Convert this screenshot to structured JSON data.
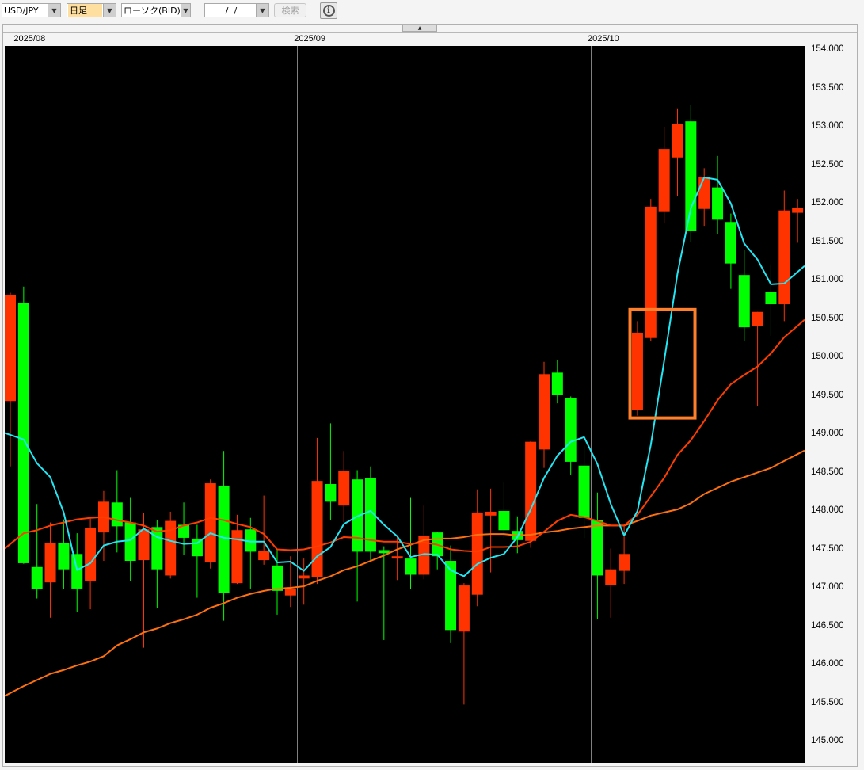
{
  "toolbar": {
    "symbol": "USD/JPY",
    "timeframe": "日足",
    "chart_kind": "ローソク(BID)",
    "date_value": "/  /",
    "search_label": "検索",
    "info_icon": "info-circle-icon",
    "timeframe_highlight": "#ffdf9f"
  },
  "colors": {
    "background": "#000000",
    "up_candle": "#ff3300",
    "down_candle": "#00ff00",
    "ma_short": "#22e6f2",
    "ma_mid": "#ff3d00",
    "ma_long": "#ff7010",
    "highlight_box": "#ff7f2a",
    "gridline": "#808080"
  },
  "chart_data": {
    "type": "candlestick",
    "title": "",
    "xlabel": "",
    "ylabel": "",
    "ylim": [
      145.0,
      154.0
    ],
    "y_ticks": [
      "154.000",
      "153.500",
      "153.000",
      "152.500",
      "152.000",
      "151.500",
      "151.000",
      "150.500",
      "150.000",
      "149.500",
      "149.000",
      "148.500",
      "148.000",
      "147.500",
      "147.000",
      "146.500",
      "146.000",
      "145.500",
      "145.000"
    ],
    "y_axis_position": "right",
    "x_labels": [
      {
        "label": "2025/08",
        "before_candle": 1
      },
      {
        "label": "2025/09",
        "before_candle": 22
      },
      {
        "label": "2025/10",
        "before_candle": 44
      }
    ],
    "extra_gridline_at_candle": 57,
    "candles": [
      [
        149.42,
        150.83,
        148.57,
        150.8
      ],
      [
        150.7,
        150.91,
        147.3,
        147.31
      ],
      [
        147.26,
        148.08,
        146.85,
        146.97
      ],
      [
        147.06,
        147.84,
        146.6,
        147.57
      ],
      [
        147.57,
        147.88,
        146.97,
        147.23
      ],
      [
        147.43,
        147.7,
        146.67,
        146.98
      ],
      [
        147.08,
        147.89,
        146.71,
        147.77
      ],
      [
        147.71,
        148.25,
        147.34,
        148.11
      ],
      [
        148.1,
        148.52,
        147.45,
        147.79
      ],
      [
        147.84,
        148.16,
        147.08,
        147.34
      ],
      [
        147.35,
        147.96,
        146.21,
        147.75
      ],
      [
        147.78,
        147.87,
        146.73,
        147.23
      ],
      [
        147.15,
        147.98,
        147.11,
        147.86
      ],
      [
        147.81,
        148.1,
        147.42,
        147.64
      ],
      [
        147.63,
        147.81,
        146.86,
        147.4
      ],
      [
        147.32,
        148.4,
        147.24,
        148.35
      ],
      [
        148.32,
        148.77,
        146.56,
        146.92
      ],
      [
        147.05,
        147.94,
        147.04,
        147.74
      ],
      [
        147.75,
        147.9,
        146.98,
        147.46
      ],
      [
        147.35,
        148.19,
        147.29,
        147.47
      ],
      [
        147.28,
        147.49,
        146.64,
        146.95
      ],
      [
        146.89,
        147.4,
        146.74,
        146.98
      ],
      [
        147.11,
        147.37,
        146.77,
        147.15
      ],
      [
        147.13,
        148.94,
        147.04,
        148.38
      ],
      [
        148.34,
        149.13,
        147.87,
        148.11
      ],
      [
        148.06,
        148.77,
        147.84,
        148.51
      ],
      [
        148.4,
        148.52,
        146.81,
        147.46
      ],
      [
        148.42,
        148.57,
        147.32,
        147.46
      ],
      [
        147.48,
        147.53,
        146.31,
        147.44
      ],
      [
        147.37,
        147.65,
        147.09,
        147.4
      ],
      [
        147.37,
        148.16,
        146.98,
        147.16
      ],
      [
        147.16,
        148.06,
        147.1,
        147.67
      ],
      [
        147.71,
        147.72,
        147.23,
        147.4
      ],
      [
        147.34,
        147.54,
        146.27,
        146.44
      ],
      [
        146.42,
        147.05,
        145.47,
        147.02
      ],
      [
        146.9,
        148.27,
        146.75,
        147.97
      ],
      [
        147.93,
        148.28,
        147.19,
        147.98
      ],
      [
        147.99,
        148.37,
        147.64,
        147.74
      ],
      [
        147.73,
        147.92,
        147.44,
        147.61
      ],
      [
        147.6,
        148.9,
        147.51,
        148.89
      ],
      [
        148.79,
        149.93,
        148.55,
        149.77
      ],
      [
        149.79,
        149.95,
        149.39,
        149.5
      ],
      [
        149.46,
        149.48,
        148.46,
        148.63
      ],
      [
        148.58,
        148.84,
        147.64,
        147.9
      ],
      [
        147.87,
        148.23,
        146.58,
        147.15
      ],
      [
        147.03,
        147.5,
        146.6,
        147.23
      ],
      [
        147.21,
        147.79,
        147.04,
        147.43
      ],
      [
        149.3,
        150.46,
        149.23,
        150.31
      ],
      [
        150.24,
        152.05,
        150.2,
        151.95
      ],
      [
        151.89,
        152.99,
        151.73,
        152.7
      ],
      [
        152.59,
        153.23,
        152.09,
        153.03
      ],
      [
        153.06,
        153.27,
        151.49,
        151.63
      ],
      [
        151.92,
        152.45,
        151.7,
        152.33
      ],
      [
        152.2,
        152.61,
        151.59,
        151.78
      ],
      [
        151.75,
        151.86,
        150.88,
        151.21
      ],
      [
        151.06,
        151.39,
        150.2,
        150.38
      ],
      [
        150.4,
        150.58,
        149.36,
        150.58
      ],
      [
        150.84,
        151.2,
        150.27,
        150.68
      ],
      [
        150.68,
        152.16,
        150.46,
        151.9
      ],
      [
        151.87,
        152.05,
        151.48,
        151.93
      ]
    ],
    "candle_fields": [
      "open",
      "high",
      "low",
      "close"
    ],
    "series": [
      {
        "key": "ma_short",
        "values": [
          148.98,
          148.92,
          148.61,
          148.43,
          147.97,
          147.22,
          147.31,
          147.54,
          147.59,
          147.61,
          147.76,
          147.65,
          147.6,
          147.56,
          147.57,
          147.7,
          147.64,
          147.62,
          147.59,
          147.59,
          147.32,
          147.33,
          147.21,
          147.4,
          147.52,
          147.82,
          147.92,
          147.99,
          147.81,
          147.66,
          147.39,
          147.43,
          147.42,
          147.22,
          147.14,
          147.3,
          147.38,
          147.43,
          147.65,
          148.01,
          148.42,
          148.71,
          148.89,
          148.95,
          148.6,
          148.08,
          147.67,
          147.99,
          148.85,
          149.94,
          151.08,
          151.93,
          152.33,
          152.3,
          151.99,
          151.47,
          151.26,
          150.94,
          150.95,
          151.1
        ]
      },
      {
        "key": "ma_mid",
        "values": [
          147.56,
          147.7,
          147.74,
          147.8,
          147.84,
          147.88,
          147.9,
          147.91,
          147.87,
          147.84,
          147.8,
          147.72,
          147.74,
          147.8,
          147.84,
          147.9,
          147.87,
          147.82,
          147.78,
          147.69,
          147.49,
          147.48,
          147.49,
          147.53,
          147.58,
          147.65,
          147.64,
          147.61,
          147.59,
          147.59,
          147.56,
          147.58,
          147.55,
          147.49,
          147.47,
          147.46,
          147.52,
          147.52,
          147.53,
          147.59,
          147.72,
          147.86,
          147.94,
          147.91,
          147.86,
          147.8,
          147.8,
          147.94,
          148.18,
          148.42,
          148.72,
          148.91,
          149.16,
          149.43,
          149.64,
          149.76,
          149.87,
          150.04,
          150.25,
          150.4
        ]
      },
      {
        "key": "ma_long",
        "values": [
          145.62,
          145.71,
          145.79,
          145.87,
          145.92,
          145.98,
          146.03,
          146.1,
          146.24,
          146.32,
          146.41,
          146.46,
          146.53,
          146.58,
          146.64,
          146.73,
          146.79,
          146.86,
          146.91,
          146.95,
          146.98,
          146.99,
          147.01,
          147.08,
          147.14,
          147.22,
          147.27,
          147.34,
          147.41,
          147.49,
          147.55,
          147.61,
          147.63,
          147.63,
          147.65,
          147.68,
          147.69,
          147.69,
          147.67,
          147.68,
          147.71,
          147.73,
          147.76,
          147.78,
          147.8,
          147.8,
          147.8,
          147.86,
          147.93,
          147.97,
          148.01,
          148.09,
          148.21,
          148.29,
          148.37,
          148.43,
          148.49,
          148.55,
          148.64,
          148.73
        ]
      }
    ],
    "annotations": [
      {
        "type": "rectangle",
        "from_candle": 46.5,
        "to_candle": 51.5,
        "price_top": 150.61,
        "price_bottom": 149.2
      }
    ],
    "grid": "month-separators",
    "legend": "none"
  }
}
